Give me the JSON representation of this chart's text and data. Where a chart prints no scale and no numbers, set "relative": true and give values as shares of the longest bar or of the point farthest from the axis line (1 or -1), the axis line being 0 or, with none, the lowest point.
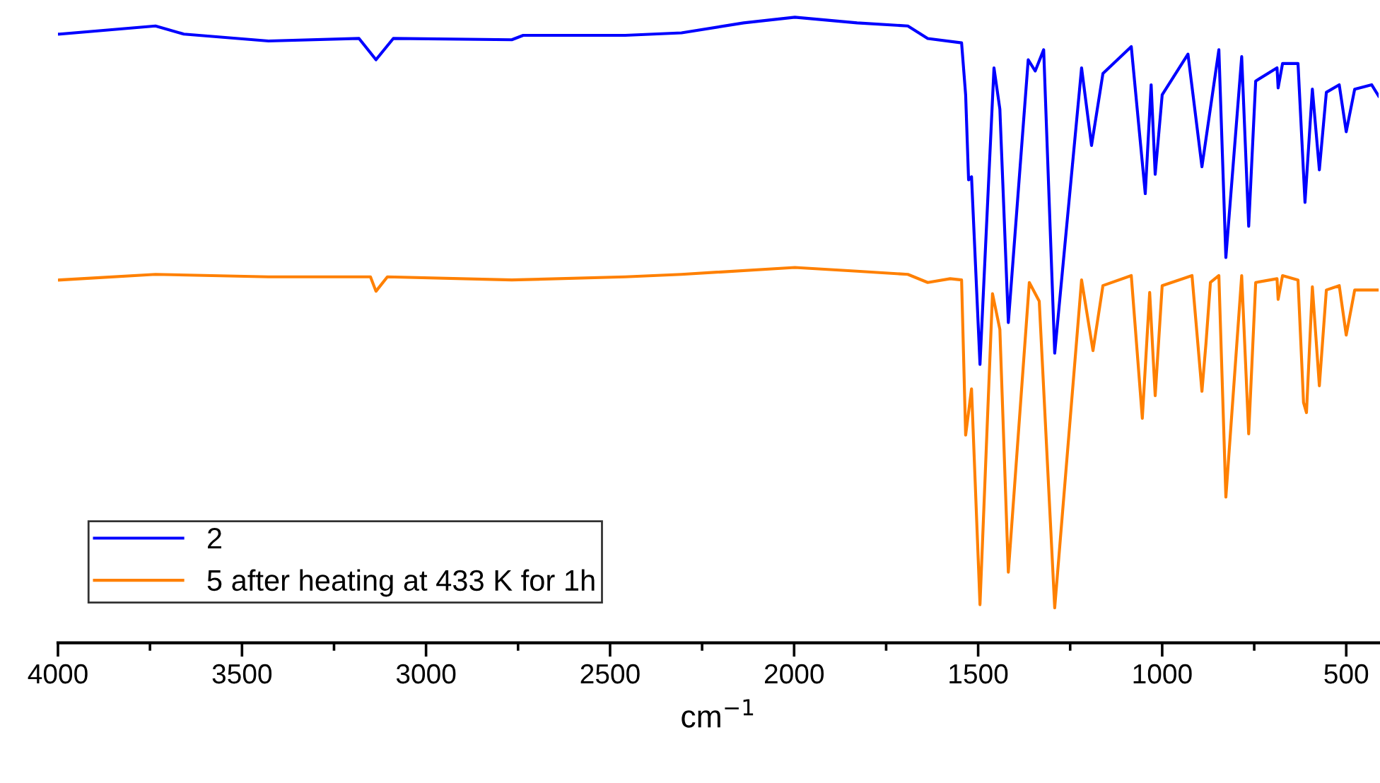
{
  "chart_data": {
    "type": "line",
    "relative": true,
    "xlabel": "cm$^{−1}$",
    "xlim": [
      4000,
      412
    ],
    "xticks": [
      4000,
      {
        "value": 3750,
        "label": null
      },
      3500,
      {
        "value": 3250,
        "label": null
      },
      3000,
      {
        "value": 2750,
        "label": null
      },
      2500,
      {
        "value": 2250,
        "label": null
      },
      2000,
      {
        "value": 1750,
        "label": null
      },
      1500,
      {
        "value": 1250,
        "label": null
      },
      1000,
      {
        "value": 750,
        "label": null
      },
      500
    ],
    "tick_labels": "x",
    "legend": "bottom left",
    "grid": false,
    "marker": "none",
    "line_style": "solid",
    "series": [
      {
        "name": "2",
        "color": "#0000ff",
        "x": [
          3996,
          3735,
          3658,
          3428,
          3182,
          3136,
          3089,
          2767,
          2736,
          2459,
          2306,
          2137,
          1998,
          1829,
          1691,
          1637,
          1545,
          1534,
          1526,
          1518,
          1495,
          1457,
          1441,
          1418,
          1364,
          1345,
          1322,
          1292,
          1219,
          1192,
          1161,
          1084,
          1046,
          1030,
          1019,
          1000,
          930,
          892,
          846,
          827,
          784,
          765,
          746,
          688,
          685,
          673,
          631,
          612,
          592,
          573,
          554,
          519,
          500,
          477,
          431,
          412
        ],
        "values": [
          0.973,
          0.986,
          0.973,
          0.962,
          0.966,
          0.932,
          0.966,
          0.964,
          0.971,
          0.971,
          0.975,
          0.991,
          1.0,
          0.991,
          0.986,
          0.966,
          0.959,
          0.876,
          0.74,
          0.745,
          0.445,
          0.919,
          0.853,
          0.512,
          0.932,
          0.914,
          0.948,
          0.463,
          0.919,
          0.795,
          0.91,
          0.953,
          0.718,
          0.892,
          0.749,
          0.876,
          0.941,
          0.761,
          0.948,
          0.616,
          0.937,
          0.666,
          0.898,
          0.919,
          0.887,
          0.926,
          0.926,
          0.704,
          0.885,
          0.756,
          0.88,
          0.892,
          0.817,
          0.885,
          0.892,
          0.874
        ]
      },
      {
        "name": "5 after heating at 433 K for 1h",
        "color": "#ff8000",
        "x": [
          3996,
          3735,
          3428,
          3151,
          3136,
          3105,
          2767,
          2459,
          2306,
          1998,
          1829,
          1691,
          1637,
          1576,
          1545,
          1534,
          1518,
          1495,
          1461,
          1441,
          1418,
          1361,
          1334,
          1292,
          1219,
          1188,
          1161,
          1084,
          1054,
          1034,
          1019,
          1000,
          919,
          892,
          881,
          869,
          846,
          827,
          784,
          765,
          746,
          688,
          685,
          673,
          631,
          616,
          608,
          592,
          573,
          554,
          519,
          500,
          477,
          412
        ],
        "values": [
          0.58,
          0.589,
          0.585,
          0.585,
          0.562,
          0.585,
          0.58,
          0.585,
          0.589,
          0.6,
          0.594,
          0.589,
          0.576,
          0.582,
          0.58,
          0.332,
          0.406,
          0.061,
          0.558,
          0.501,
          0.113,
          0.576,
          0.546,
          0.056,
          0.58,
          0.467,
          0.571,
          0.587,
          0.359,
          0.56,
          0.395,
          0.571,
          0.587,
          0.402,
          0.479,
          0.576,
          0.587,
          0.233,
          0.587,
          0.334,
          0.576,
          0.582,
          0.549,
          0.587,
          0.58,
          0.384,
          0.368,
          0.569,
          0.411,
          0.564,
          0.571,
          0.492,
          0.564,
          0.564
        ]
      }
    ]
  }
}
